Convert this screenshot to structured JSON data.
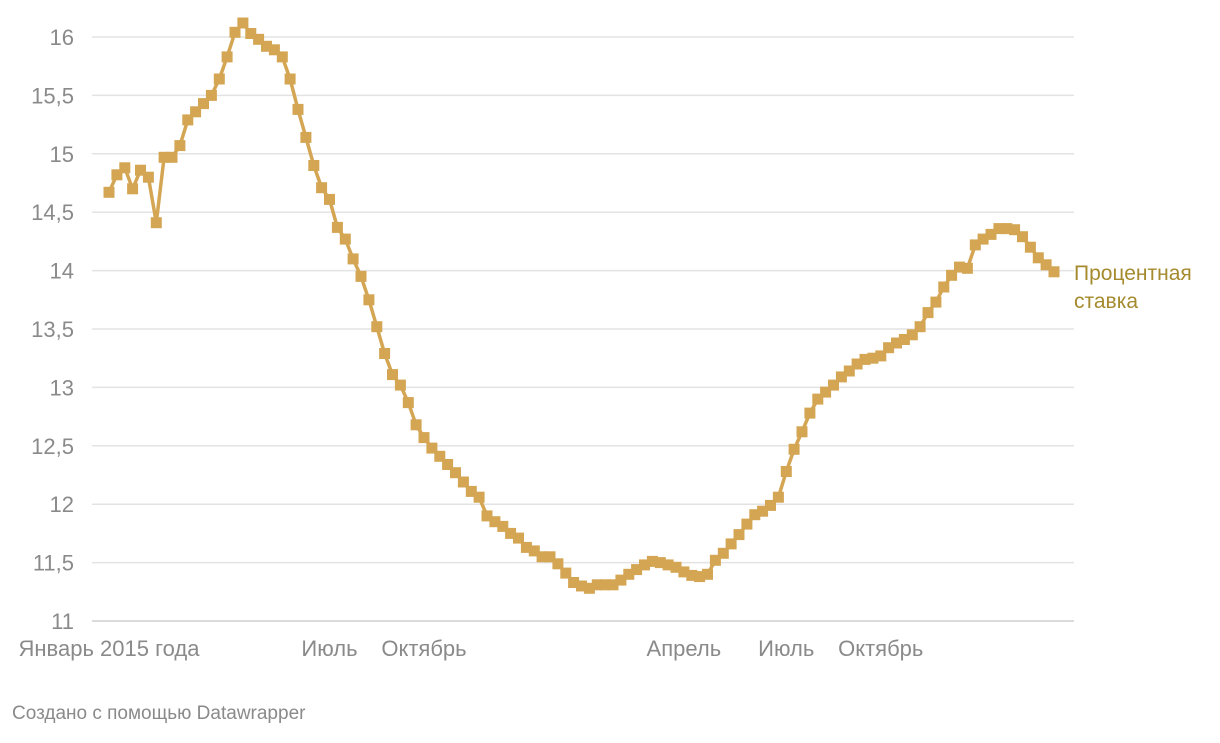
{
  "chart_data": {
    "type": "line",
    "title": "",
    "xlabel": "",
    "ylabel": "",
    "ylim": [
      11,
      16.2
    ],
    "yticks": [
      "16",
      "15,5",
      "15",
      "14,5",
      "14",
      "13,5",
      "13",
      "12,5",
      "12",
      "11,5",
      "11"
    ],
    "yticks_values": [
      16,
      15.5,
      15,
      14.5,
      14,
      13.5,
      13,
      12.5,
      12,
      11.5,
      11
    ],
    "x_axis": "weekly observations, 2015–2016",
    "x_tick_labels": [
      {
        "label": "Январь 2015 года",
        "index": 0
      },
      {
        "label": "Июль",
        "index": 28
      },
      {
        "label": "Октябрь",
        "index": 40
      },
      {
        "label": "Апрель",
        "index": 73
      },
      {
        "label": "Июль",
        "index": 86
      },
      {
        "label": "Октябрь",
        "index": 98
      }
    ],
    "grid": true,
    "marker": "square",
    "series": [
      {
        "name": "Процентная ставка",
        "color": "#d4a654",
        "label_color": "#a58a2e",
        "values": [
          14.67,
          14.82,
          14.88,
          14.7,
          14.86,
          14.8,
          14.41,
          14.97,
          14.97,
          15.07,
          15.29,
          15.36,
          15.43,
          15.5,
          15.64,
          15.83,
          16.04,
          16.12,
          16.03,
          15.98,
          15.92,
          15.89,
          15.83,
          15.64,
          15.38,
          15.14,
          14.9,
          14.71,
          14.61,
          14.37,
          14.27,
          14.1,
          13.95,
          13.75,
          13.52,
          13.29,
          13.11,
          13.02,
          12.87,
          12.68,
          12.57,
          12.48,
          12.41,
          12.34,
          12.27,
          12.19,
          12.11,
          12.06,
          11.9,
          11.85,
          11.81,
          11.75,
          11.71,
          11.63,
          11.6,
          11.55,
          11.55,
          11.49,
          11.41,
          11.33,
          11.3,
          11.28,
          11.31,
          11.31,
          11.31,
          11.35,
          11.4,
          11.44,
          11.48,
          11.51,
          11.5,
          11.48,
          11.46,
          11.42,
          11.39,
          11.38,
          11.4,
          11.52,
          11.58,
          11.66,
          11.74,
          11.83,
          11.91,
          11.94,
          11.99,
          12.06,
          12.28,
          12.47,
          12.62,
          12.78,
          12.9,
          12.96,
          13.02,
          13.09,
          13.14,
          13.2,
          13.24,
          13.25,
          13.27,
          13.34,
          13.38,
          13.41,
          13.45,
          13.52,
          13.64,
          13.73,
          13.86,
          13.96,
          14.03,
          14.02,
          14.22,
          14.27,
          14.31,
          14.36,
          14.36,
          14.35,
          14.29,
          14.2,
          14.11,
          14.05,
          13.99
        ]
      }
    ]
  },
  "series_label": {
    "line1": "Процентная",
    "line2": "ставка"
  },
  "credit": "Создано с помощью Datawrapper"
}
